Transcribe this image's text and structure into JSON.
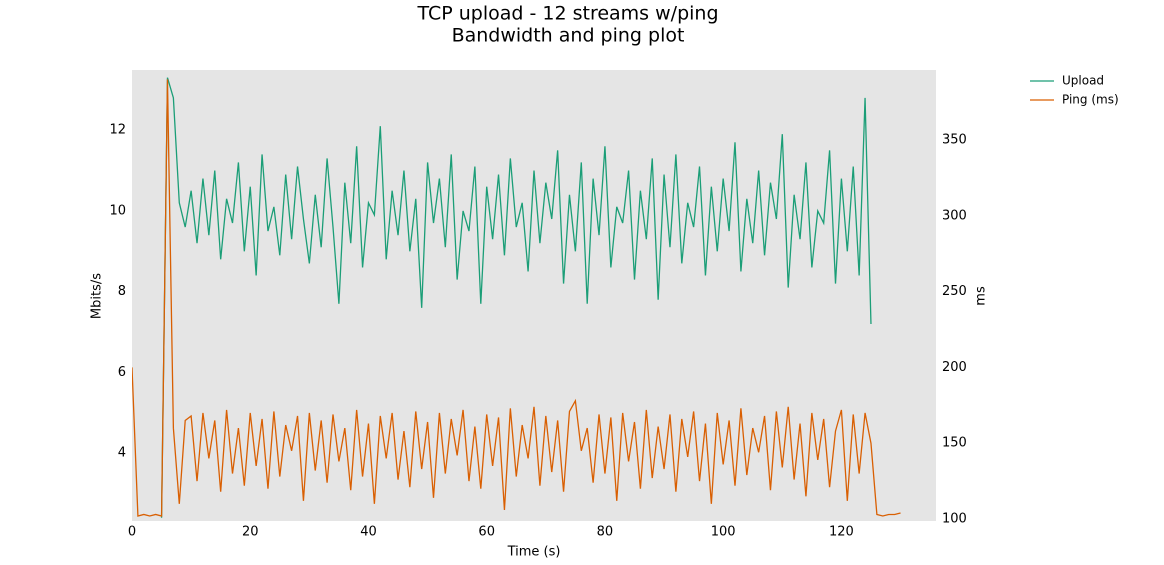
{
  "chart_data": {
    "type": "line",
    "title": "TCP upload - 12 streams w/ping",
    "subtitle": "Bandwidth and ping plot",
    "xlabel": "Time (s)",
    "ylabel": "Mbits/s",
    "y2label": "ms",
    "x": [
      0,
      1,
      2,
      3,
      4,
      5,
      6,
      7,
      8,
      9,
      10,
      11,
      12,
      13,
      14,
      15,
      16,
      17,
      18,
      19,
      20,
      21,
      22,
      23,
      24,
      25,
      26,
      27,
      28,
      29,
      30,
      31,
      32,
      33,
      34,
      35,
      36,
      37,
      38,
      39,
      40,
      41,
      42,
      43,
      44,
      45,
      46,
      47,
      48,
      49,
      50,
      51,
      52,
      53,
      54,
      55,
      56,
      57,
      58,
      59,
      60,
      61,
      62,
      63,
      64,
      65,
      66,
      67,
      68,
      69,
      70,
      71,
      72,
      73,
      74,
      75,
      76,
      77,
      78,
      79,
      80,
      81,
      82,
      83,
      84,
      85,
      86,
      87,
      88,
      89,
      90,
      91,
      92,
      93,
      94,
      95,
      96,
      97,
      98,
      99,
      100,
      101,
      102,
      103,
      104,
      105,
      106,
      107,
      108,
      109,
      110,
      111,
      112,
      113,
      114,
      115,
      116,
      117,
      118,
      119,
      120,
      121,
      122,
      123,
      124,
      125,
      126,
      127,
      128,
      129,
      130
    ],
    "series": [
      {
        "name": "Upload",
        "color": "#1b9e77",
        "axis": "y",
        "values": [
          null,
          null,
          null,
          null,
          null,
          2.4,
          13.3,
          12.8,
          10.2,
          9.6,
          10.5,
          9.2,
          10.8,
          9.4,
          11.0,
          8.8,
          10.3,
          9.7,
          11.2,
          9.0,
          10.6,
          8.4,
          11.4,
          9.5,
          10.1,
          8.9,
          10.9,
          9.3,
          11.1,
          9.8,
          8.7,
          10.4,
          9.1,
          11.3,
          9.6,
          7.7,
          10.7,
          9.2,
          11.6,
          8.6,
          10.2,
          9.9,
          12.1,
          8.8,
          10.5,
          9.4,
          11.0,
          9.0,
          10.3,
          7.6,
          11.2,
          9.7,
          10.8,
          9.1,
          11.4,
          8.3,
          10.0,
          9.5,
          11.1,
          7.7,
          10.6,
          9.3,
          10.9,
          8.9,
          11.3,
          9.6,
          10.2,
          8.5,
          11.0,
          9.2,
          10.7,
          9.8,
          11.5,
          8.2,
          10.4,
          9.0,
          11.2,
          7.7,
          10.8,
          9.4,
          11.6,
          8.6,
          10.1,
          9.7,
          11.0,
          8.3,
          10.5,
          9.3,
          11.3,
          7.8,
          10.9,
          9.1,
          11.4,
          8.7,
          10.2,
          9.6,
          11.1,
          8.4,
          10.6,
          9.0,
          10.8,
          9.5,
          11.7,
          8.5,
          10.3,
          9.2,
          11.0,
          8.9,
          10.7,
          9.8,
          11.9,
          8.1,
          10.4,
          9.3,
          11.2,
          8.6,
          10.0,
          9.7,
          11.5,
          8.2,
          10.8,
          9.0,
          11.1,
          8.4,
          12.8,
          7.2,
          null,
          null,
          null,
          null,
          null
        ]
      },
      {
        "name": "Ping (ms)",
        "color": "#d95f02",
        "axis": "y2",
        "values": [
          200,
          102,
          103,
          102,
          103,
          102,
          390,
          160,
          110,
          165,
          168,
          125,
          170,
          140,
          165,
          118,
          172,
          130,
          160,
          122,
          170,
          135,
          166,
          120,
          171,
          128,
          162,
          145,
          168,
          112,
          170,
          132,
          165,
          124,
          169,
          138,
          160,
          119,
          172,
          128,
          163,
          110,
          168,
          140,
          170,
          126,
          158,
          121,
          171,
          133,
          164,
          114,
          170,
          130,
          166,
          142,
          172,
          125,
          161,
          120,
          169,
          135,
          167,
          106,
          173,
          128,
          162,
          140,
          174,
          122,
          168,
          131,
          165,
          118,
          171,
          178,
          145,
          160,
          124,
          169,
          130,
          167,
          112,
          170,
          138,
          164,
          120,
          172,
          127,
          161,
          133,
          169,
          118,
          166,
          141,
          171,
          125,
          163,
          110,
          170,
          136,
          165,
          122,
          173,
          129,
          160,
          144,
          168,
          119,
          171,
          134,
          174,
          126,
          163,
          115,
          170,
          139,
          166,
          121,
          158,
          172,
          112,
          169,
          130,
          170,
          150,
          103,
          102,
          103,
          103,
          104
        ]
      }
    ],
    "xlim": [
      0,
      136
    ],
    "xticks": [
      0,
      20,
      40,
      60,
      80,
      100,
      120
    ],
    "ylim": [
      2.32,
      13.49
    ],
    "yticks": [
      4,
      6,
      8,
      10,
      12
    ],
    "y2lim": [
      98.7,
      396.2
    ],
    "y2ticks": [
      100,
      150,
      200,
      250,
      300,
      350
    ],
    "grid": false,
    "legend": "outside right",
    "plot_background": "#e5e5e5"
  }
}
